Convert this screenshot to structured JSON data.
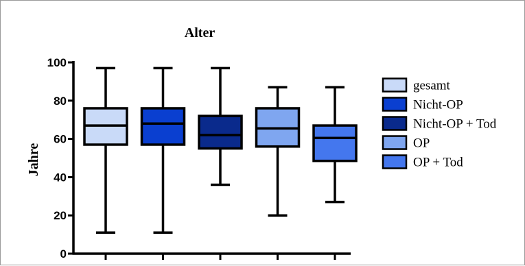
{
  "chart_data": {
    "type": "boxplot",
    "title": "Alter",
    "xlabel": "",
    "ylabel": "Jahre",
    "ylim": [
      0,
      100
    ],
    "yticks": [
      0,
      20,
      40,
      60,
      80,
      100
    ],
    "grid": false,
    "legend_position": "right",
    "series": [
      {
        "name": "gesamt",
        "color": "#c9daf8",
        "min": 11,
        "q1": 57,
        "median": 67,
        "q3": 76,
        "max": 97
      },
      {
        "name": "Nicht-OP",
        "color": "#0a3fd0",
        "min": 11,
        "q1": 57,
        "median": 68,
        "q3": 76,
        "max": 97
      },
      {
        "name": "Nicht-OP + Tod",
        "color": "#0a2a8c",
        "min": 36,
        "q1": 55,
        "median": 62,
        "q3": 72,
        "max": 97
      },
      {
        "name": "OP",
        "color": "#7fa6f0",
        "min": 20,
        "q1": 56,
        "median": 65.5,
        "q3": 76,
        "max": 87
      },
      {
        "name": "OP + Tod",
        "color": "#4477ee",
        "min": 27,
        "q1": 48.5,
        "median": 60.5,
        "q3": 67,
        "max": 87
      }
    ]
  }
}
